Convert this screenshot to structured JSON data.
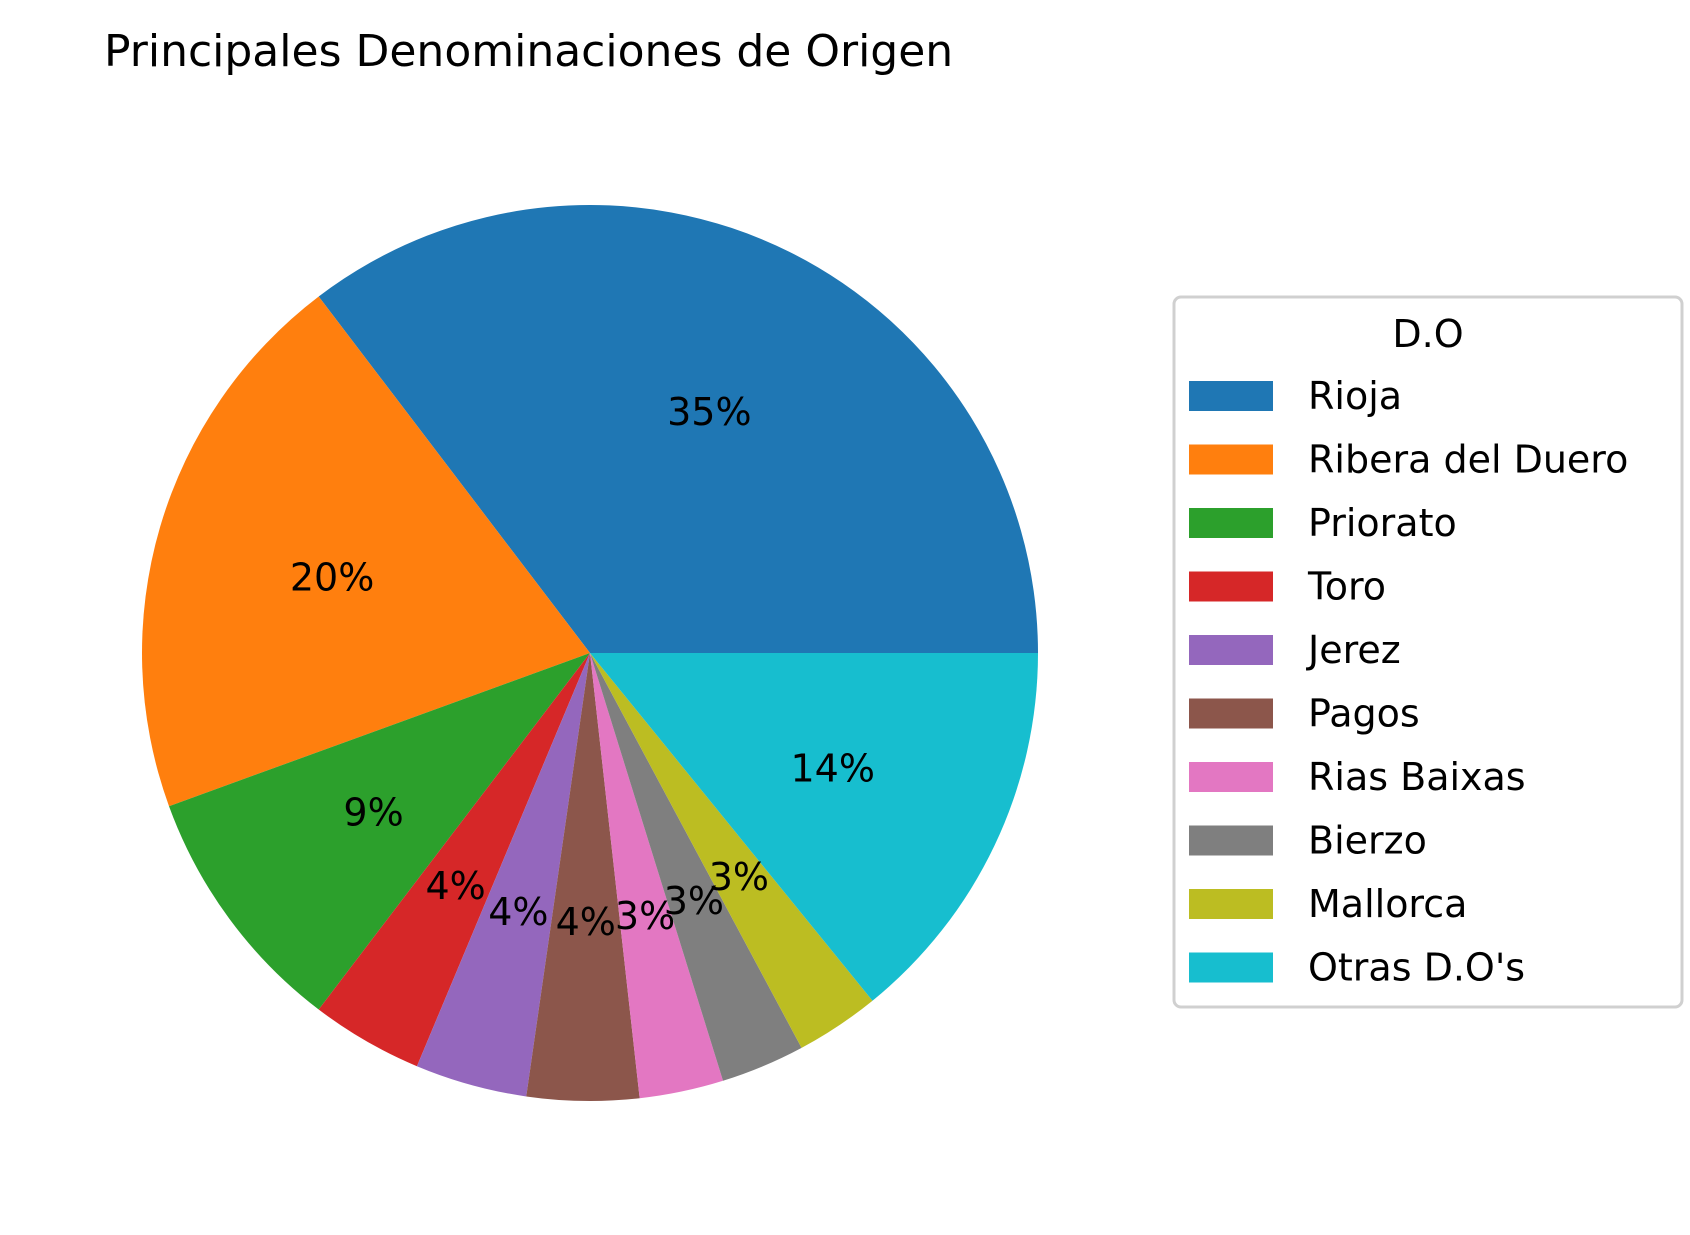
{
  "chart_data": {
    "type": "pie",
    "title": "Principales Denominaciones de Origen",
    "start_angle_deg": 0,
    "direction": "counterclockwise-from-east",
    "legend": {
      "title": "D.O",
      "placement": "right"
    },
    "slices": [
      {
        "label": "Rioja",
        "value": 35,
        "pct_label": "35%",
        "color": "#1f77b4"
      },
      {
        "label": "Ribera del Duero",
        "value": 20,
        "pct_label": "20%",
        "color": "#ff7f0e"
      },
      {
        "label": "Priorato",
        "value": 9,
        "pct_label": "9%",
        "color": "#2ca02c"
      },
      {
        "label": "Toro",
        "value": 4,
        "pct_label": "4%",
        "color": "#d62728"
      },
      {
        "label": "Jerez",
        "value": 4,
        "pct_label": "4%",
        "color": "#9467bd"
      },
      {
        "label": "Pagos",
        "value": 4,
        "pct_label": "4%",
        "color": "#8c564b"
      },
      {
        "label": "Rias Baixas",
        "value": 3,
        "pct_label": "3%",
        "color": "#e377c2"
      },
      {
        "label": "Bierzo",
        "value": 3,
        "pct_label": "3%",
        "color": "#7f7f7f"
      },
      {
        "label": "Mallorca",
        "value": 3,
        "pct_label": "3%",
        "color": "#bcbd22"
      },
      {
        "label": "Otras D.O's",
        "value": 14,
        "pct_label": "14%",
        "color": "#17becf"
      }
    ]
  }
}
